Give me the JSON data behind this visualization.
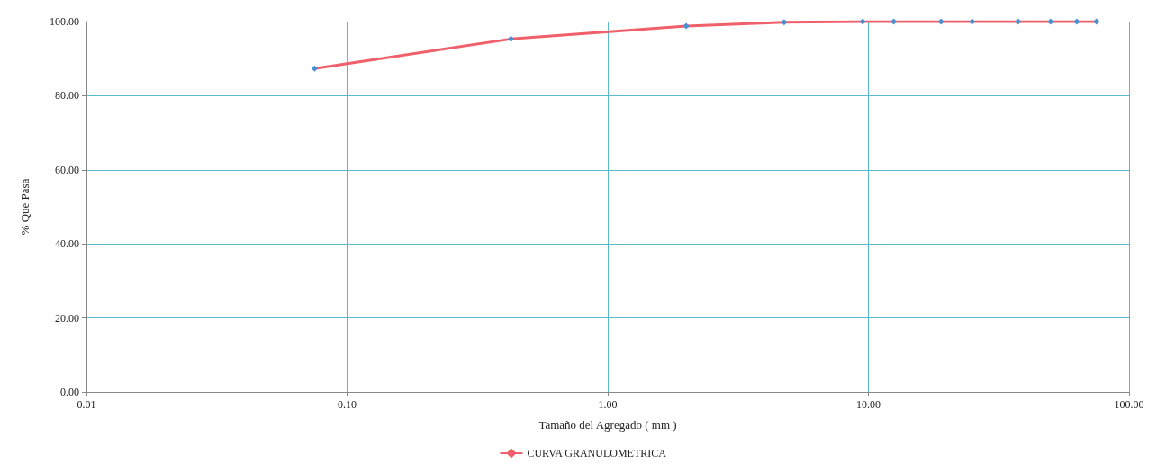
{
  "chart_data": {
    "type": "line",
    "xlabel": "Tamaño del Agregado ( mm )",
    "ylabel": "% Que Pasa",
    "log": "x",
    "xlim": [
      0.01,
      100
    ],
    "xticks": [
      {
        "value": 0.01,
        "label": "0.01"
      },
      {
        "value": 0.1,
        "label": "0.10"
      },
      {
        "value": 1,
        "label": "1.00"
      },
      {
        "value": 10,
        "label": "10.00"
      },
      {
        "value": 100,
        "label": "100.00"
      }
    ],
    "ylim": [
      0,
      100
    ],
    "yticks": [
      {
        "value": 0,
        "label": "0.00"
      },
      {
        "value": 20,
        "label": "20.00"
      },
      {
        "value": 40,
        "label": "40.00"
      },
      {
        "value": 60,
        "label": "60.00"
      },
      {
        "value": 80,
        "label": "80.00"
      },
      {
        "value": 100,
        "label": "100.00"
      }
    ],
    "grid": true,
    "legend": "bottom",
    "marker": "diamond",
    "line_style": "solid",
    "series": [
      {
        "name": "CURVA GRANULOMETRICA",
        "color": "#f0606a",
        "colors": [
          "#4a8fd0",
          "#4a8fd0",
          "#4a8fd0",
          "#4a8fd0",
          "#4a8fd0",
          "#4a8fd0",
          "#4a8fd0",
          "#4a8fd0",
          "#4a8fd0",
          "#4a8fd0",
          "#4a8fd0",
          "#4a8fd0"
        ],
        "x": [
          0.075,
          0.425,
          2,
          4.75,
          9.5,
          12.5,
          19,
          25,
          37.5,
          50,
          63,
          75
        ],
        "values": [
          87.3,
          95.3,
          98.8,
          99.8,
          100,
          100,
          100,
          100,
          100,
          100,
          100,
          100
        ]
      }
    ]
  }
}
